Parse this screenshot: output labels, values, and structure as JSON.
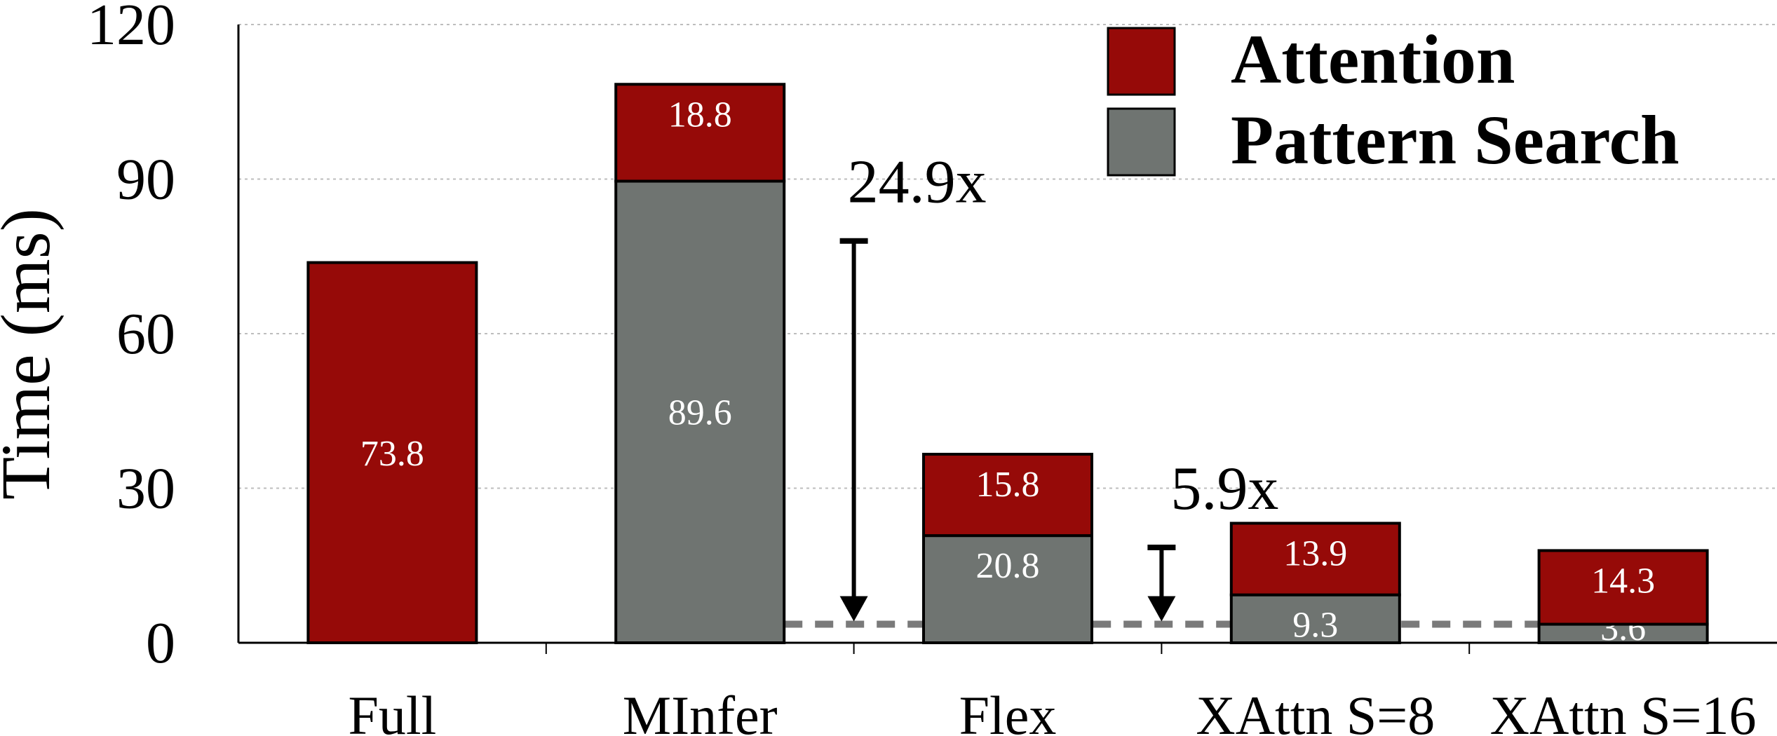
{
  "chart_data": {
    "type": "bar",
    "stacked": true,
    "title": "",
    "xlabel": "",
    "ylabel": "Time (ms)",
    "ylim": [
      0,
      120
    ],
    "yticks": [
      0,
      30,
      60,
      90,
      120
    ],
    "grid": true,
    "legend_position": "top-right",
    "categories": [
      "Full",
      "MInfer",
      "Flex",
      "XAttn S=8",
      "XAttn S=16"
    ],
    "series": [
      {
        "name": "Pattern Search",
        "color": "#6f7471",
        "values": [
          0,
          89.6,
          20.8,
          9.3,
          3.6
        ],
        "labels": [
          "",
          "89.6",
          "20.8",
          "9.3",
          "3.6"
        ]
      },
      {
        "name": "Attention",
        "color": "#960a08",
        "values": [
          73.8,
          18.8,
          15.8,
          13.9,
          14.3
        ],
        "labels": [
          "73.8",
          "18.8",
          "15.8",
          "13.9",
          "14.3"
        ]
      }
    ],
    "legend_order": [
      "Attention",
      "Pattern Search"
    ],
    "reference_line": {
      "value": 3.6,
      "style": "dashed",
      "color": "#7a7a7a"
    },
    "annotations": [
      {
        "text": "24.9x",
        "from_category": "MInfer",
        "from_value": 78,
        "to_value": 3.6
      },
      {
        "text": "5.9x",
        "from_category": "Flex",
        "from_value": 18.5,
        "to_value": 3.6
      }
    ]
  }
}
